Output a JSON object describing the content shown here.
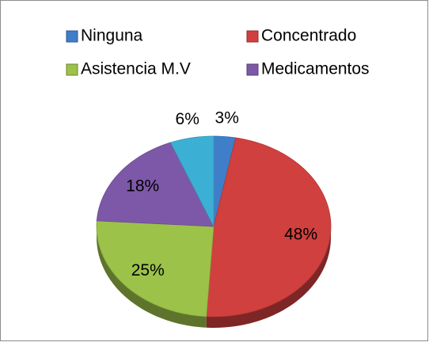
{
  "chart_data": {
    "type": "pie",
    "categories": [
      "Ninguna",
      "Concentrado",
      "Asistencia M.V",
      "Medicamentos",
      null
    ],
    "values": [
      3,
      48,
      25,
      18,
      6
    ],
    "value_labels": [
      "3%",
      "48%",
      "25%",
      "18%",
      "6%"
    ],
    "colors": [
      "#3f7ec9",
      "#d0403e",
      "#9cc24a",
      "#7e58a8",
      "#3cb0d4"
    ],
    "legend": "top"
  }
}
